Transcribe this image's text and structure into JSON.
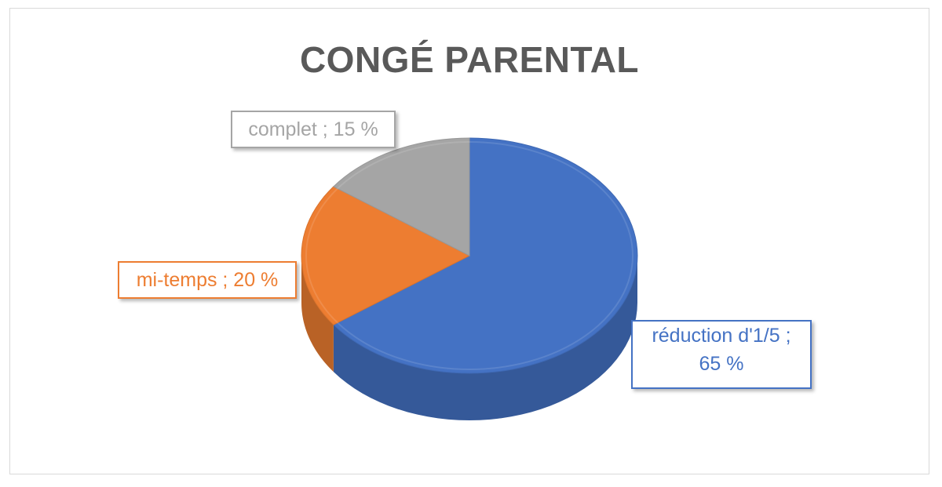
{
  "chart_data": {
    "type": "pie",
    "title": "CONGÉ PARENTAL",
    "slices": [
      {
        "name": "réduction d'1/5",
        "value": 65,
        "color": "#4472C4",
        "label_lines": [
          "réduction d'1/5 ;",
          "65 %"
        ]
      },
      {
        "name": "mi-temps",
        "value": 20,
        "color": "#ED7D31",
        "label_lines": [
          "mi-temps ; 20 %"
        ]
      },
      {
        "name": "complet",
        "value": 15,
        "color": "#A5A5A5",
        "label_lines": [
          "complet ; 15 %"
        ]
      }
    ],
    "style": "3d-pie",
    "start": "top, clockwise"
  }
}
